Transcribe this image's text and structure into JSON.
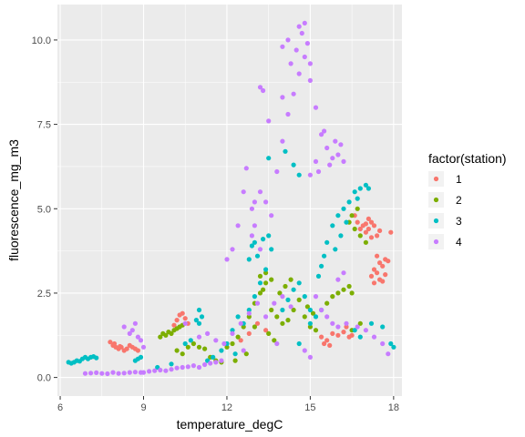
{
  "chart_data": {
    "type": "scatter",
    "xlabel": "temperature_degC",
    "ylabel": "fluorescence_mg_m3",
    "xlim": [
      5.9,
      18.3
    ],
    "ylim": [
      -0.55,
      11.05
    ],
    "x_ticks": [
      6,
      9,
      12,
      15,
      18
    ],
    "x_tick_labels": [
      "6",
      "9",
      "12",
      "15",
      "18"
    ],
    "y_ticks": [
      0.0,
      2.5,
      5.0,
      7.5,
      10.0
    ],
    "y_tick_labels": [
      "0.0",
      "2.5",
      "5.0",
      "7.5",
      "10.0"
    ],
    "grid": true,
    "legend": {
      "title": "factor(station)",
      "placement": "right"
    },
    "panel_background": "#EBEBEB",
    "grid_color": "#FFFFFF",
    "series": [
      {
        "name": "1",
        "color": "#F8766D",
        "points": [
          [
            7.8,
            1.05
          ],
          [
            7.9,
            0.95
          ],
          [
            8.0,
            0.9
          ],
          [
            8.1,
            0.85
          ],
          [
            8.2,
            0.9
          ],
          [
            8.3,
            0.8
          ],
          [
            8.4,
            0.85
          ],
          [
            8.5,
            0.95
          ],
          [
            8.6,
            0.9
          ],
          [
            8.7,
            0.85
          ],
          [
            8.8,
            0.8
          ],
          [
            7.95,
            1.0
          ],
          [
            8.15,
            0.92
          ],
          [
            10.2,
            1.7
          ],
          [
            10.3,
            1.85
          ],
          [
            10.4,
            1.9
          ],
          [
            10.5,
            1.75
          ],
          [
            10.6,
            1.6
          ],
          [
            10.1,
            1.55
          ],
          [
            12.5,
            1.1
          ],
          [
            12.8,
            1.3
          ],
          [
            13.1,
            1.6
          ],
          [
            13.4,
            1.4
          ],
          [
            15.4,
            1.2
          ],
          [
            15.6,
            1.1
          ],
          [
            15.8,
            1.3
          ],
          [
            16.0,
            1.25
          ],
          [
            16.2,
            1.35
          ],
          [
            15.5,
            1.0
          ],
          [
            15.7,
            0.95
          ],
          [
            16.3,
            1.5
          ],
          [
            16.4,
            1.2
          ],
          [
            16.5,
            1.25
          ],
          [
            16.6,
            4.8
          ],
          [
            16.7,
            4.6
          ],
          [
            16.8,
            4.4
          ],
          [
            16.9,
            4.5
          ],
          [
            17.0,
            4.3
          ],
          [
            17.1,
            4.4
          ],
          [
            17.2,
            4.6
          ],
          [
            17.3,
            4.5
          ],
          [
            17.4,
            4.2
          ],
          [
            17.5,
            4.35
          ],
          [
            17.0,
            4.55
          ],
          [
            17.2,
            4.15
          ],
          [
            17.1,
            4.7
          ],
          [
            17.2,
            3.0
          ],
          [
            17.3,
            3.2
          ],
          [
            17.4,
            3.1
          ],
          [
            17.5,
            3.4
          ],
          [
            17.6,
            3.3
          ],
          [
            17.7,
            3.5
          ],
          [
            17.3,
            2.8
          ],
          [
            17.5,
            2.9
          ],
          [
            17.4,
            3.6
          ],
          [
            17.6,
            2.85
          ],
          [
            17.7,
            3.05
          ],
          [
            17.8,
            3.45
          ],
          [
            17.9,
            4.3
          ]
        ]
      },
      {
        "name": "2",
        "color": "#7CAE00",
        "points": [
          [
            9.6,
            1.2
          ],
          [
            9.7,
            1.3
          ],
          [
            9.8,
            1.25
          ],
          [
            9.9,
            1.35
          ],
          [
            10.0,
            1.3
          ],
          [
            10.1,
            1.4
          ],
          [
            10.2,
            1.45
          ],
          [
            10.3,
            1.5
          ],
          [
            10.4,
            1.55
          ],
          [
            10.2,
            0.8
          ],
          [
            10.4,
            0.7
          ],
          [
            10.6,
            0.9
          ],
          [
            10.8,
            1.0
          ],
          [
            11.0,
            0.9
          ],
          [
            11.2,
            0.85
          ],
          [
            11.4,
            0.6
          ],
          [
            11.6,
            0.5
          ],
          [
            11.8,
            0.45
          ],
          [
            12.0,
            0.9
          ],
          [
            12.2,
            1.0
          ],
          [
            12.4,
            1.2
          ],
          [
            12.6,
            1.5
          ],
          [
            12.8,
            1.8
          ],
          [
            13.0,
            2.2
          ],
          [
            13.2,
            2.5
          ],
          [
            13.4,
            2.8
          ],
          [
            13.6,
            2.0
          ],
          [
            13.8,
            1.8
          ],
          [
            14.0,
            1.6
          ],
          [
            14.2,
            1.7
          ],
          [
            14.4,
            2.0
          ],
          [
            14.6,
            2.3
          ],
          [
            14.8,
            1.8
          ],
          [
            15.0,
            1.5
          ],
          [
            15.2,
            1.4
          ],
          [
            13.9,
            2.5
          ],
          [
            14.1,
            2.7
          ],
          [
            14.3,
            2.9
          ],
          [
            13.5,
            1.3
          ],
          [
            13.7,
            1.1
          ],
          [
            13.2,
            3.0
          ],
          [
            13.4,
            3.1
          ],
          [
            13.6,
            2.9
          ],
          [
            13.3,
            2.6
          ],
          [
            14.9,
            2.1
          ],
          [
            15.1,
            1.9
          ],
          [
            15.6,
            2.2
          ],
          [
            15.8,
            2.4
          ],
          [
            16.0,
            2.5
          ],
          [
            16.2,
            2.6
          ],
          [
            16.4,
            2.7
          ],
          [
            16.5,
            2.5
          ],
          [
            16.4,
            4.6
          ],
          [
            16.6,
            4.4
          ],
          [
            16.8,
            4.2
          ],
          [
            17.0,
            4.0
          ],
          [
            16.5,
            4.8
          ],
          [
            16.7,
            5.0
          ],
          [
            16.8,
            1.6
          ],
          [
            16.5,
            1.4
          ],
          [
            13.0,
            1.5
          ],
          [
            12.7,
            0.7
          ],
          [
            12.3,
            0.5
          ]
        ]
      },
      {
        "name": "3",
        "color": "#00BFC4",
        "points": [
          [
            6.3,
            0.45
          ],
          [
            6.4,
            0.42
          ],
          [
            6.5,
            0.45
          ],
          [
            6.6,
            0.5
          ],
          [
            6.7,
            0.48
          ],
          [
            6.8,
            0.55
          ],
          [
            6.9,
            0.6
          ],
          [
            7.0,
            0.55
          ],
          [
            7.1,
            0.6
          ],
          [
            7.2,
            0.62
          ],
          [
            7.3,
            0.58
          ],
          [
            8.7,
            0.5
          ],
          [
            8.8,
            0.55
          ],
          [
            8.9,
            0.6
          ],
          [
            11.0,
            1.6
          ],
          [
            11.1,
            1.8
          ],
          [
            11.0,
            2.0
          ],
          [
            10.9,
            1.7
          ],
          [
            11.5,
            0.6
          ],
          [
            11.8,
            0.8
          ],
          [
            12.0,
            1.0
          ],
          [
            12.2,
            1.4
          ],
          [
            12.4,
            1.8
          ],
          [
            12.6,
            1.6
          ],
          [
            12.8,
            2.0
          ],
          [
            13.0,
            2.4
          ],
          [
            13.2,
            2.8
          ],
          [
            13.4,
            3.2
          ],
          [
            12.8,
            3.5
          ],
          [
            12.9,
            3.9
          ],
          [
            13.0,
            4.0
          ],
          [
            13.1,
            3.6
          ],
          [
            13.3,
            4.1
          ],
          [
            13.5,
            4.2
          ],
          [
            13.6,
            3.8
          ],
          [
            13.5,
            6.5
          ],
          [
            14.1,
            6.7
          ],
          [
            14.4,
            6.3
          ],
          [
            14.6,
            6.0
          ],
          [
            14.0,
            2.0
          ],
          [
            14.2,
            2.3
          ],
          [
            14.4,
            2.6
          ],
          [
            14.6,
            2.8
          ],
          [
            14.8,
            2.4
          ],
          [
            15.0,
            2.0
          ],
          [
            15.2,
            1.8
          ],
          [
            15.4,
            2.0
          ],
          [
            15.3,
            3.0
          ],
          [
            15.4,
            3.3
          ],
          [
            15.5,
            3.6
          ],
          [
            15.6,
            4.0
          ],
          [
            15.8,
            4.5
          ],
          [
            16.0,
            4.8
          ],
          [
            16.2,
            5.0
          ],
          [
            16.4,
            5.2
          ],
          [
            15.9,
            3.8
          ],
          [
            16.1,
            4.2
          ],
          [
            16.3,
            4.6
          ],
          [
            16.6,
            5.5
          ],
          [
            16.8,
            5.6
          ],
          [
            17.0,
            5.7
          ],
          [
            17.1,
            5.6
          ],
          [
            16.7,
            5.3
          ],
          [
            16.6,
            1.4
          ],
          [
            16.8,
            1.2
          ],
          [
            17.2,
            1.6
          ],
          [
            17.6,
            1.5
          ],
          [
            17.9,
            1.0
          ],
          [
            18.0,
            0.9
          ],
          [
            10.5,
            1.0
          ],
          [
            10.7,
            1.1
          ],
          [
            9.5,
            0.3
          ],
          [
            10.0,
            0.4
          ],
          [
            11.3,
            0.5
          ],
          [
            12.3,
            0.7
          ],
          [
            14.6,
            1.0
          ],
          [
            15.0,
            1.6
          ]
        ]
      },
      {
        "name": "4",
        "color": "#C77CFF",
        "points": [
          [
            6.9,
            0.12
          ],
          [
            7.1,
            0.13
          ],
          [
            7.3,
            0.14
          ],
          [
            7.5,
            0.12
          ],
          [
            7.7,
            0.11
          ],
          [
            7.9,
            0.15
          ],
          [
            8.1,
            0.12
          ],
          [
            8.3,
            0.13
          ],
          [
            8.5,
            0.15
          ],
          [
            8.7,
            0.16
          ],
          [
            8.9,
            0.15
          ],
          [
            9.0,
            0.15
          ],
          [
            9.2,
            0.18
          ],
          [
            9.4,
            0.2
          ],
          [
            9.6,
            0.22
          ],
          [
            9.8,
            0.2
          ],
          [
            10.0,
            0.24
          ],
          [
            10.2,
            0.28
          ],
          [
            10.4,
            0.3
          ],
          [
            10.6,
            0.32
          ],
          [
            10.8,
            0.35
          ],
          [
            11.0,
            0.3
          ],
          [
            11.2,
            0.38
          ],
          [
            11.4,
            0.42
          ],
          [
            11.6,
            0.45
          ],
          [
            11.8,
            0.5
          ],
          [
            8.3,
            1.5
          ],
          [
            8.5,
            1.3
          ],
          [
            8.6,
            1.4
          ],
          [
            8.7,
            1.6
          ],
          [
            8.8,
            1.2
          ],
          [
            8.9,
            1.1
          ],
          [
            9.0,
            0.9
          ],
          [
            10.5,
            1.6
          ],
          [
            11.0,
            1.2
          ],
          [
            11.3,
            1.3
          ],
          [
            11.6,
            1.1
          ],
          [
            11.9,
            1.0
          ],
          [
            12.2,
            1.3
          ],
          [
            12.5,
            1.6
          ],
          [
            12.8,
            1.9
          ],
          [
            13.1,
            2.2
          ],
          [
            13.4,
            1.8
          ],
          [
            13.7,
            2.2
          ],
          [
            14.0,
            2.4
          ],
          [
            14.3,
            2.1
          ],
          [
            12.0,
            3.5
          ],
          [
            12.2,
            3.8
          ],
          [
            12.4,
            4.5
          ],
          [
            12.6,
            5.5
          ],
          [
            12.7,
            6.2
          ],
          [
            12.9,
            5.0
          ],
          [
            13.0,
            4.5
          ],
          [
            13.2,
            3.8
          ],
          [
            13.4,
            5.2
          ],
          [
            13.6,
            4.8
          ],
          [
            13.8,
            6.1
          ],
          [
            14.0,
            7.0
          ],
          [
            14.2,
            7.8
          ],
          [
            14.4,
            8.4
          ],
          [
            14.6,
            9.0
          ],
          [
            14.8,
            9.5
          ],
          [
            15.0,
            8.8
          ],
          [
            15.2,
            8.0
          ],
          [
            14.9,
            9.9
          ],
          [
            14.8,
            10.5
          ],
          [
            14.7,
            10.2
          ],
          [
            14.5,
            9.7
          ],
          [
            14.3,
            9.3
          ],
          [
            13.3,
            8.5
          ],
          [
            13.2,
            8.6
          ],
          [
            14.0,
            9.8
          ],
          [
            14.2,
            10.0
          ],
          [
            14.6,
            10.4
          ],
          [
            15.0,
            9.3
          ],
          [
            14.0,
            8.3
          ],
          [
            13.5,
            7.6
          ],
          [
            15.0,
            6.0
          ],
          [
            15.2,
            6.4
          ],
          [
            15.4,
            7.2
          ],
          [
            15.5,
            7.3
          ],
          [
            15.6,
            6.8
          ],
          [
            15.8,
            6.5
          ],
          [
            16.0,
            6.6
          ],
          [
            16.2,
            6.4
          ],
          [
            15.9,
            7.0
          ],
          [
            16.1,
            6.9
          ],
          [
            15.3,
            6.1
          ],
          [
            15.7,
            6.3
          ],
          [
            15.2,
            2.4
          ],
          [
            15.4,
            2.0
          ],
          [
            15.6,
            1.8
          ],
          [
            15.8,
            1.6
          ],
          [
            16.0,
            1.5
          ],
          [
            16.3,
            1.6
          ],
          [
            16.7,
            1.5
          ],
          [
            17.0,
            1.4
          ],
          [
            17.3,
            1.2
          ],
          [
            17.6,
            1.0
          ],
          [
            17.8,
            0.7
          ],
          [
            13.2,
            5.5
          ],
          [
            13.0,
            5.2
          ],
          [
            12.9,
            4.2
          ],
          [
            16.2,
            3.1
          ],
          [
            16.0,
            2.9
          ],
          [
            15.0,
            0.6
          ],
          [
            14.8,
            0.8
          ],
          [
            13.8,
            1.0
          ],
          [
            12.6,
            0.8
          ]
        ]
      }
    ]
  }
}
